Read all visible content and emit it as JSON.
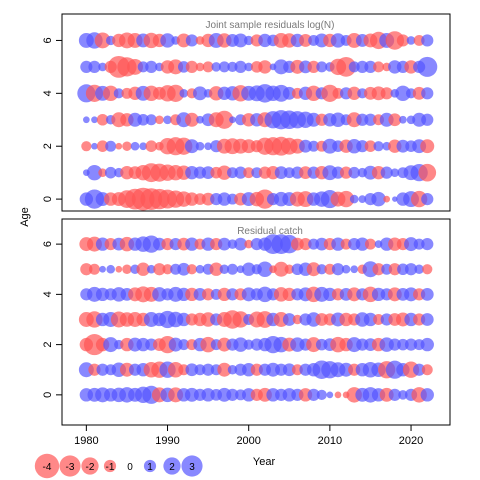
{
  "colors": {
    "positive": "#5555ff",
    "negative": "#ff5555",
    "positive_alpha": 0.7,
    "negative_alpha": 0.7,
    "background": "#ffffff",
    "axis": "#000000",
    "title": "#7a7a7a"
  },
  "axes": {
    "xlabel": "Year",
    "ylabel": "Age",
    "x_ticks": [
      1980,
      1990,
      2000,
      2010,
      2020
    ],
    "y_ticks": [
      0,
      2,
      4,
      6
    ],
    "xlim": [
      1977.0,
      2024.8
    ],
    "ylim": [
      -0.45,
      7.0
    ],
    "ylim_bottom": [
      -1.2,
      7.0
    ]
  },
  "legend": {
    "position": "bottom-left",
    "values": [
      -4,
      -3,
      -2,
      -1,
      0,
      1,
      2,
      3
    ],
    "labels": [
      "-4",
      "-3",
      "-2",
      "-1",
      "0",
      "1",
      "2",
      "3"
    ]
  },
  "chart_data": [
    {
      "type": "scatter",
      "title": "Joint sample residuals log(N)",
      "xlabel": "",
      "ylabel": "Age",
      "ages": [
        0,
        1,
        2,
        3,
        4,
        5,
        6
      ],
      "years": [
        1980,
        1981,
        1982,
        1983,
        1984,
        1985,
        1986,
        1987,
        1988,
        1989,
        1990,
        1991,
        1992,
        1993,
        1994,
        1995,
        1996,
        1997,
        1998,
        1999,
        2000,
        2001,
        2002,
        2003,
        2004,
        2005,
        2006,
        2007,
        2008,
        2009,
        2010,
        2011,
        2012,
        2013,
        2014,
        2015,
        2016,
        2017,
        2018,
        2019,
        2020,
        2021,
        2022
      ],
      "residuals": [
        [
          1.2,
          2.5,
          1.3,
          -1.2,
          -1.3,
          -2.1,
          -2.9,
          -3.5,
          -3.2,
          -2.8,
          -2.4,
          -2.0,
          -1.6,
          -1.2,
          -0.9,
          -1.1,
          1.0,
          1.2,
          0.8,
          -1.1,
          1.3,
          -1.4,
          -2.5,
          1.0,
          1.4,
          1.3,
          -1.5,
          -1.7,
          1.2,
          1.6,
          2.2,
          -1.5,
          -1.8,
          0.5,
          0.4,
          1.0,
          1.4,
          -0.3,
          0.2,
          1.2,
          1.7,
          -1.8,
          1.0
        ],
        [
          0.3,
          1.6,
          -0.5,
          0.9,
          0.6,
          -1.2,
          -1.1,
          -1.6,
          -2.4,
          -2.2,
          -1.8,
          -1.6,
          -1.4,
          1.2,
          1.0,
          1.1,
          -0.9,
          -1.4,
          0.8,
          1.0,
          -0.8,
          0.8,
          -1.0,
          -1.2,
          1.1,
          0.8,
          1.0,
          -1.1,
          1.0,
          -1.2,
          1.5,
          1.0,
          -1.0,
          0.9,
          0.6,
          1.3,
          -1.2,
          1.0,
          0.5,
          0.8,
          1.5,
          2.0,
          -2.1
        ],
        [
          -0.7,
          0.3,
          -0.9,
          0.8,
          -0.3,
          -0.6,
          0.5,
          0.4,
          -0.9,
          -0.5,
          -1.8,
          -2.2,
          -2.0,
          1.3,
          0.5,
          0.4,
          1.0,
          -1.5,
          -1.7,
          -1.5,
          -1.3,
          -1.0,
          -2.0,
          -2.2,
          -2.4,
          -1.9,
          -1.5,
          1.1,
          0.8,
          -0.8,
          1.5,
          0.9,
          -1.2,
          1.4,
          1.0,
          -0.9,
          0.7,
          0.5,
          -1.2,
          1.1,
          0.9,
          1.3,
          -1.3
        ],
        [
          0.3,
          0.3,
          -0.9,
          0.6,
          -1.5,
          -1.2,
          1.3,
          0.9,
          0.8,
          -0.5,
          0.5,
          -0.8,
          1.5,
          -1.3,
          0.4,
          1.1,
          -1.5,
          -2.2,
          0.3,
          0.8,
          -1.2,
          1.2,
          -1.5,
          2.0,
          2.5,
          2.3,
          2.0,
          1.8,
          1.3,
          -1.0,
          1.2,
          1.4,
          0.8,
          -1.5,
          1.0,
          1.0,
          -0.8,
          1.3,
          -1.1,
          0.4,
          0.5,
          1.3,
          1.0
        ],
        [
          2.2,
          -2.0,
          1.5,
          -1.6,
          0.7,
          -0.8,
          -1.2,
          1.5,
          -1.6,
          -1.1,
          -1.8,
          -2.0,
          0.5,
          -0.7,
          1.3,
          0.5,
          -1.4,
          1.2,
          1.4,
          -1.8,
          1.5,
          1.7,
          2.3,
          1.6,
          1.9,
          1.1,
          -0.8,
          1.2,
          -1.6,
          1.0,
          -2.0,
          -0.8,
          1.0,
          -1.2,
          0.7,
          -1.1,
          -1.3,
          -1.0,
          0.5,
          1.6,
          0.7,
          -1.1,
          1.0
        ],
        [
          1.0,
          1.0,
          0.5,
          -1.0,
          -3.2,
          -2.5,
          -1.7,
          0.8,
          1.0,
          0.5,
          -1.2,
          -1.5,
          0.9,
          -1.0,
          -0.5,
          -0.8,
          0.6,
          0.8,
          0.7,
          1.0,
          0.5,
          -0.9,
          -1.2,
          0.3,
          1.5,
          1.0,
          -1.3,
          1.1,
          -1.0,
          0.8,
          0.6,
          -1.8,
          -2.6,
          0.8,
          1.0,
          1.0,
          -0.8,
          -0.5,
          1.2,
          1.0,
          -1.2,
          1.0,
          2.7
        ],
        [
          1.5,
          1.8,
          -1.7,
          0.6,
          -1.2,
          -1.7,
          -1.5,
          1.3,
          -1.6,
          -1.2,
          1.4,
          0.5,
          -1.3,
          1.0,
          -0.5,
          -1.2,
          1.5,
          -1.4,
          1.1,
          1.3,
          0.6,
          -1.0,
          1.2,
          0.9,
          -1.5,
          -1.4,
          1.2,
          -1.1,
          0.8,
          1.3,
          -1.2,
          1.4,
          0.8,
          -1.5,
          1.1,
          -1.3,
          -2.0,
          1.5,
          -2.3,
          -1.0,
          0.5,
          -0.8,
          1.0
        ]
      ]
    },
    {
      "type": "scatter",
      "title": "Residual catch",
      "xlabel": "Year",
      "ylabel": "Age",
      "ages": [
        0,
        1,
        2,
        3,
        4,
        5,
        6
      ],
      "years": [
        1980,
        1981,
        1982,
        1983,
        1984,
        1985,
        1986,
        1987,
        1988,
        1989,
        1990,
        1991,
        1992,
        1993,
        1994,
        1995,
        1996,
        1997,
        1998,
        1999,
        2000,
        2001,
        2002,
        2003,
        2004,
        2005,
        2006,
        2007,
        2008,
        2009,
        2010,
        2011,
        2012,
        2013,
        2014,
        2015,
        2016,
        2017,
        2018,
        2019,
        2020,
        2021,
        2022
      ],
      "residuals": [
        [
          1.2,
          1.3,
          1.5,
          1.2,
          1.4,
          1.6,
          1.3,
          1.8,
          2.2,
          -1.5,
          1.4,
          -1.5,
          1.2,
          1.3,
          1.0,
          1.2,
          0.9,
          1.3,
          1.0,
          0.8,
          1.2,
          -1.0,
          -1.3,
          1.2,
          1.0,
          1.2,
          1.0,
          -1.2,
          1.0,
          0.7,
          0.3,
          -0.3,
          -0.3,
          -1.6,
          1.3,
          1.6,
          1.2,
          -1.3,
          1.0,
          0.6,
          1.0,
          -1.6,
          1.2
        ],
        [
          1.5,
          -1.0,
          1.0,
          0.8,
          1.4,
          -1.3,
          1.0,
          1.2,
          -1.6,
          -1.8,
          1.8,
          -1.6,
          -0.8,
          1.1,
          0.8,
          1.0,
          0.8,
          -1.3,
          0.6,
          1.0,
          1.2,
          -1.0,
          1.0,
          1.3,
          1.0,
          1.1,
          -0.8,
          1.0,
          1.2,
          2.3,
          2.0,
          1.5,
          1.3,
          -1.0,
          1.2,
          1.6,
          1.4,
          -2.0,
          2.2,
          1.2,
          -1.8,
          1.0,
          -0.8
        ],
        [
          -1.2,
          -3.0,
          -1.2,
          1.5,
          0.6,
          -1.2,
          1.3,
          1.2,
          1.0,
          -1.1,
          -2.0,
          1.3,
          0.8,
          -0.8,
          1.2,
          -1.6,
          0.8,
          -1.3,
          1.0,
          1.4,
          0.7,
          1.0,
          1.2,
          2.0,
          1.6,
          -1.3,
          1.4,
          1.0,
          -1.5,
          0.9,
          1.1,
          -1.6,
          -1.2,
          1.5,
          1.0,
          1.1,
          -1.2,
          1.4,
          1.0,
          0.9,
          1.0,
          0.8,
          1.2
        ],
        [
          -1.5,
          -1.8,
          1.2,
          1.5,
          -1.7,
          -1.4,
          -1.5,
          -1.2,
          1.5,
          1.2,
          2.0,
          1.6,
          1.2,
          -1.0,
          -1.2,
          -1.4,
          1.0,
          -1.5,
          -2.3,
          -1.8,
          0.8,
          -1.7,
          -1.9,
          1.2,
          -1.5,
          1.1,
          -0.6,
          1.0,
          1.4,
          -1.1,
          -1.0,
          1.3,
          -1.2,
          -1.0,
          1.4,
          1.2,
          -0.8,
          1.0,
          -1.1,
          -1.3,
          1.2,
          -1.0,
          1.1
        ],
        [
          1.0,
          1.5,
          1.2,
          1.0,
          1.4,
          1.1,
          -1.3,
          -1.7,
          -1.5,
          1.4,
          1.0,
          1.5,
          1.2,
          -1.2,
          1.1,
          -1.0,
          0.8,
          -1.2,
          1.0,
          -1.0,
          1.3,
          1.0,
          1.6,
          1.0,
          -1.4,
          -1.2,
          1.0,
          1.3,
          -1.6,
          1.5,
          1.2,
          -1.0,
          1.1,
          -1.3,
          1.0,
          -1.6,
          1.2,
          1.0,
          -1.3,
          1.1,
          1.3,
          -1.0,
          1.1
        ],
        [
          -1.0,
          -0.8,
          0.3,
          0.5,
          -0.3,
          -0.6,
          0.6,
          -1.2,
          0.5,
          -1.0,
          -0.7,
          0.8,
          1.1,
          -0.7,
          0.5,
          0.8,
          -1.2,
          0.6,
          0.8,
          0.4,
          1.2,
          0.7,
          1.6,
          -0.4,
          -1.5,
          -0.6,
          0.9,
          1.2,
          -1.3,
          0.7,
          -0.8,
          1.0,
          0.5,
          0.4,
          -0.6,
          1.7,
          -1.0,
          0.8,
          -1.0,
          0.9,
          1.0,
          0.6,
          -0.7
        ],
        [
          -1.3,
          -1.5,
          1.2,
          -1.0,
          1.1,
          -1.4,
          1.2,
          1.6,
          2.0,
          1.1,
          -1.0,
          1.0,
          -1.1,
          1.2,
          -0.8,
          1.2,
          -1.0,
          1.1,
          0.6,
          1.1,
          -0.5,
          1.0,
          1.2,
          2.6,
          2.6,
          2.3,
          -1.1,
          -1.0,
          0.8,
          1.1,
          -1.0,
          1.2,
          -0.8,
          1.0,
          1.2,
          -0.8,
          0.4,
          1.2,
          -1.2,
          -1.0,
          1.3,
          0.8,
          1.0
        ]
      ]
    }
  ]
}
